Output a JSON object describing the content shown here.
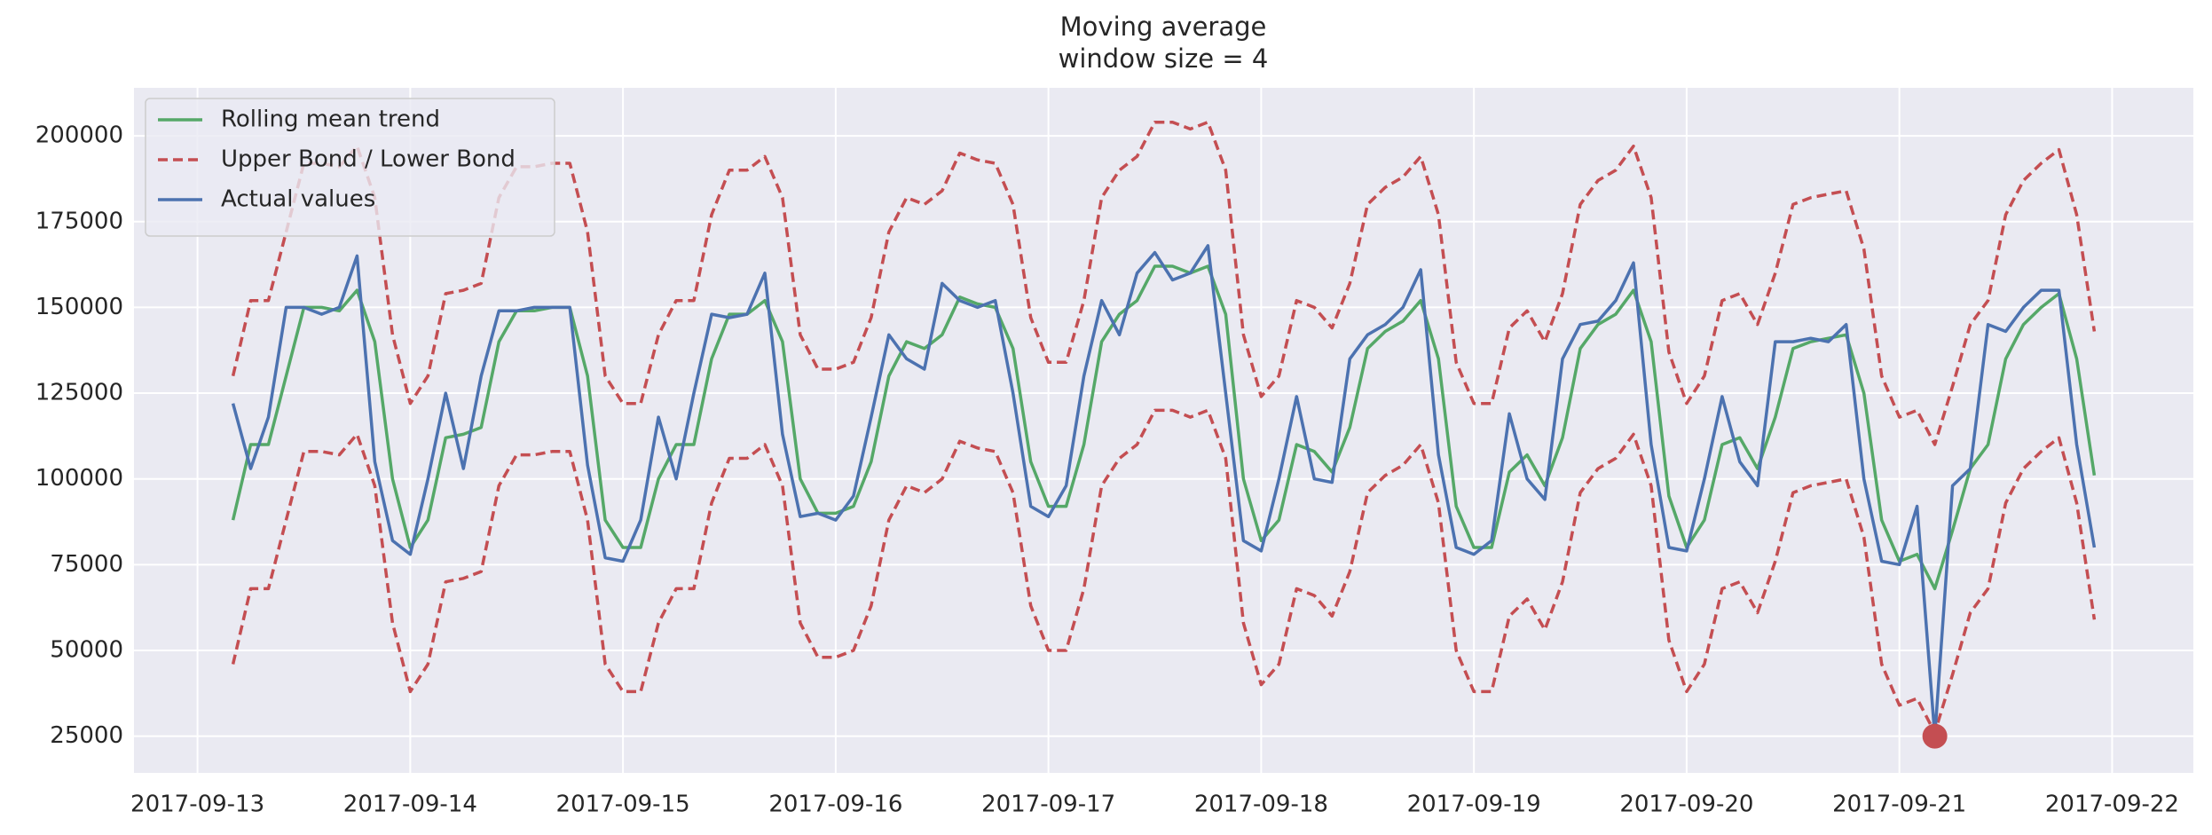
{
  "chart_data": {
    "type": "line",
    "title": "Moving average",
    "subtitle": "window size = 4",
    "x": [
      "2017-09-13 04:00",
      "2017-09-13 06:00",
      "2017-09-13 08:00",
      "2017-09-13 10:00",
      "2017-09-13 12:00",
      "2017-09-13 14:00",
      "2017-09-13 16:00",
      "2017-09-13 18:00",
      "2017-09-13 20:00",
      "2017-09-13 22:00",
      "2017-09-14 00:00",
      "2017-09-14 02:00",
      "2017-09-14 04:00",
      "2017-09-14 06:00",
      "2017-09-14 08:00",
      "2017-09-14 10:00",
      "2017-09-14 12:00",
      "2017-09-14 14:00",
      "2017-09-14 16:00",
      "2017-09-14 18:00",
      "2017-09-14 20:00",
      "2017-09-14 22:00",
      "2017-09-15 00:00",
      "2017-09-15 02:00",
      "2017-09-15 04:00",
      "2017-09-15 06:00",
      "2017-09-15 08:00",
      "2017-09-15 10:00",
      "2017-09-15 12:00",
      "2017-09-15 14:00",
      "2017-09-15 16:00",
      "2017-09-15 18:00",
      "2017-09-15 20:00",
      "2017-09-15 22:00",
      "2017-09-16 00:00",
      "2017-09-16 02:00",
      "2017-09-16 04:00",
      "2017-09-16 06:00",
      "2017-09-16 08:00",
      "2017-09-16 10:00",
      "2017-09-16 12:00",
      "2017-09-16 14:00",
      "2017-09-16 16:00",
      "2017-09-16 18:00",
      "2017-09-16 20:00",
      "2017-09-16 22:00",
      "2017-09-17 00:00",
      "2017-09-17 02:00",
      "2017-09-17 04:00",
      "2017-09-17 06:00",
      "2017-09-17 08:00",
      "2017-09-17 10:00",
      "2017-09-17 12:00",
      "2017-09-17 14:00",
      "2017-09-17 16:00",
      "2017-09-17 18:00",
      "2017-09-17 20:00",
      "2017-09-17 22:00",
      "2017-09-18 00:00",
      "2017-09-18 02:00",
      "2017-09-18 04:00",
      "2017-09-18 06:00",
      "2017-09-18 08:00",
      "2017-09-18 10:00",
      "2017-09-18 12:00",
      "2017-09-18 14:00",
      "2017-09-18 16:00",
      "2017-09-18 18:00",
      "2017-09-18 20:00",
      "2017-09-18 22:00",
      "2017-09-19 00:00",
      "2017-09-19 02:00",
      "2017-09-19 04:00",
      "2017-09-19 06:00",
      "2017-09-19 08:00",
      "2017-09-19 10:00",
      "2017-09-19 12:00",
      "2017-09-19 14:00",
      "2017-09-19 16:00",
      "2017-09-19 18:00",
      "2017-09-19 20:00",
      "2017-09-19 22:00",
      "2017-09-20 00:00",
      "2017-09-20 02:00",
      "2017-09-20 04:00",
      "2017-09-20 06:00",
      "2017-09-20 08:00",
      "2017-09-20 10:00",
      "2017-09-20 12:00",
      "2017-09-20 14:00",
      "2017-09-20 16:00",
      "2017-09-20 18:00",
      "2017-09-20 20:00",
      "2017-09-20 22:00",
      "2017-09-21 00:00",
      "2017-09-21 02:00",
      "2017-09-21 04:00",
      "2017-09-21 06:00",
      "2017-09-21 08:00",
      "2017-09-21 10:00",
      "2017-09-21 12:00",
      "2017-09-21 14:00",
      "2017-09-21 16:00",
      "2017-09-21 18:00",
      "2017-09-21 20:00",
      "2017-09-21 22:00"
    ],
    "series": [
      {
        "name": "Rolling mean trend",
        "color": "#55a868",
        "values": [
          88000,
          110000,
          110000,
          130000,
          150000,
          150000,
          149000,
          155000,
          140000,
          100000,
          80000,
          88000,
          112000,
          113000,
          115000,
          140000,
          149000,
          149000,
          150000,
          150000,
          130000,
          88000,
          80000,
          80000,
          100000,
          110000,
          110000,
          135000,
          148000,
          148000,
          152000,
          140000,
          100000,
          90000,
          90000,
          92000,
          105000,
          130000,
          140000,
          138000,
          142000,
          153000,
          151000,
          150000,
          138000,
          105000,
          92000,
          92000,
          110000,
          140000,
          148000,
          152000,
          162000,
          162000,
          160000,
          162000,
          148000,
          100000,
          82000,
          88000,
          110000,
          108000,
          102000,
          115000,
          138000,
          143000,
          146000,
          152000,
          135000,
          92000,
          80000,
          80000,
          102000,
          107000,
          98000,
          112000,
          138000,
          145000,
          148000,
          155000,
          140000,
          95000,
          80000,
          88000,
          110000,
          112000,
          103000,
          118000,
          138000,
          140000,
          141000,
          142000,
          125000,
          88000,
          76000,
          78000,
          68000,
          85000,
          103000,
          110000,
          135000,
          145000,
          150000,
          154000,
          135000,
          101000
        ]
      },
      {
        "name": "Upper Bond / Lower Bond",
        "color": "#c44e52",
        "dashed": true,
        "values": [
          130000,
          152000,
          152000,
          172000,
          192000,
          192000,
          191000,
          197000,
          182000,
          142000,
          122000,
          130000,
          154000,
          155000,
          157000,
          182000,
          191000,
          191000,
          192000,
          192000,
          172000,
          130000,
          122000,
          122000,
          142000,
          152000,
          152000,
          177000,
          190000,
          190000,
          194000,
          182000,
          142000,
          132000,
          132000,
          134000,
          147000,
          172000,
          182000,
          180000,
          184000,
          195000,
          193000,
          192000,
          180000,
          147000,
          134000,
          134000,
          152000,
          182000,
          190000,
          194000,
          204000,
          204000,
          202000,
          204000,
          190000,
          142000,
          124000,
          130000,
          152000,
          150000,
          144000,
          157000,
          180000,
          185000,
          188000,
          194000,
          177000,
          134000,
          122000,
          122000,
          144000,
          149000,
          140000,
          154000,
          180000,
          187000,
          190000,
          197000,
          182000,
          137000,
          122000,
          130000,
          152000,
          154000,
          145000,
          160000,
          180000,
          182000,
          183000,
          184000,
          167000,
          130000,
          118000,
          120000,
          110000,
          127000,
          145000,
          152000,
          177000,
          187000,
          192000,
          196000,
          177000,
          143000
        ]
      },
      {
        "color": "#c44e52",
        "dashed": true,
        "values": [
          46000,
          68000,
          68000,
          88000,
          108000,
          108000,
          107000,
          113000,
          98000,
          58000,
          38000,
          46000,
          70000,
          71000,
          73000,
          98000,
          107000,
          107000,
          108000,
          108000,
          88000,
          46000,
          38000,
          38000,
          58000,
          68000,
          68000,
          93000,
          106000,
          106000,
          110000,
          98000,
          58000,
          48000,
          48000,
          50000,
          63000,
          88000,
          98000,
          96000,
          100000,
          111000,
          109000,
          108000,
          96000,
          63000,
          50000,
          50000,
          68000,
          98000,
          106000,
          110000,
          120000,
          120000,
          118000,
          120000,
          106000,
          58000,
          40000,
          46000,
          68000,
          66000,
          60000,
          73000,
          96000,
          101000,
          104000,
          110000,
          93000,
          50000,
          38000,
          38000,
          60000,
          65000,
          56000,
          70000,
          96000,
          103000,
          106000,
          113000,
          98000,
          53000,
          38000,
          46000,
          68000,
          70000,
          61000,
          76000,
          96000,
          98000,
          99000,
          100000,
          83000,
          46000,
          34000,
          36000,
          26000,
          43000,
          61000,
          68000,
          93000,
          103000,
          108000,
          112000,
          93000,
          59000
        ]
      },
      {
        "name": "Actual values",
        "color": "#4c72b0",
        "values": [
          122000,
          103000,
          118000,
          150000,
          150000,
          148000,
          150000,
          165000,
          105000,
          82000,
          78000,
          100000,
          125000,
          103000,
          130000,
          149000,
          149000,
          150000,
          150000,
          150000,
          104000,
          77000,
          76000,
          88000,
          118000,
          100000,
          125000,
          148000,
          147000,
          148000,
          160000,
          113000,
          89000,
          90000,
          88000,
          95000,
          118000,
          142000,
          135000,
          132000,
          157000,
          152000,
          150000,
          152000,
          125000,
          92000,
          89000,
          98000,
          130000,
          152000,
          142000,
          160000,
          166000,
          158000,
          160000,
          168000,
          125000,
          82000,
          79000,
          100000,
          124000,
          100000,
          99000,
          135000,
          142000,
          145000,
          150000,
          161000,
          107000,
          80000,
          78000,
          82000,
          119000,
          100000,
          94000,
          135000,
          145000,
          146000,
          152000,
          163000,
          110000,
          80000,
          79000,
          100000,
          124000,
          105000,
          98000,
          140000,
          140000,
          141000,
          140000,
          145000,
          100000,
          76000,
          75000,
          92000,
          25000,
          98000,
          103000,
          145000,
          143000,
          150000,
          155000,
          155000,
          110000,
          80000
        ]
      }
    ],
    "anomalies": {
      "color": "#c44e52",
      "x": [
        "2017-09-21 04:00"
      ],
      "values": [
        25000
      ]
    },
    "xlim": [
      "2017-09-12 16:50",
      "2017-09-22 09:10"
    ],
    "xticks": [
      "2017-09-13",
      "2017-09-14",
      "2017-09-15",
      "2017-09-16",
      "2017-09-17",
      "2017-09-18",
      "2017-09-19",
      "2017-09-20",
      "2017-09-21",
      "2017-09-22"
    ],
    "ylim": [
      14300,
      214000
    ],
    "yticks": [
      25000,
      50000,
      75000,
      100000,
      125000,
      150000,
      175000,
      200000
    ],
    "grid": true,
    "legend": "upper left"
  }
}
